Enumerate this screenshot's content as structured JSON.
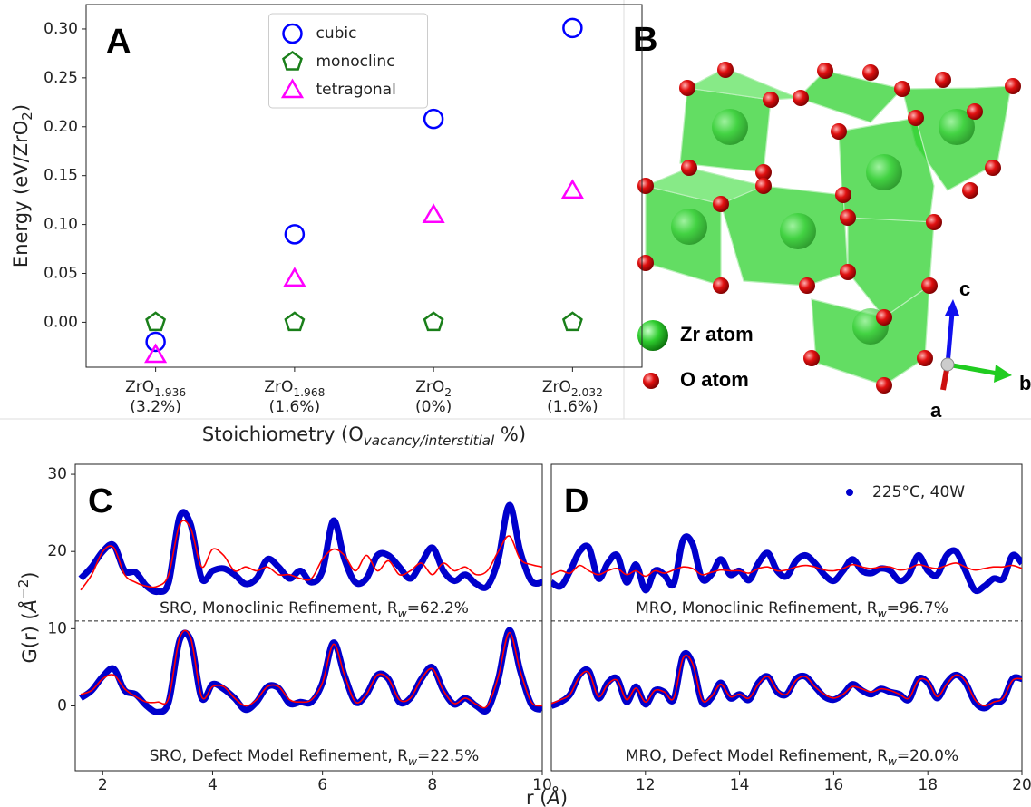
{
  "chart_data": [
    {
      "type": "scatter",
      "panel_label": "A",
      "y_label": {
        "text": "Energy (eV/ZrO",
        "sub": "2",
        "close": ")"
      },
      "x_label": {
        "text": "Stoichiometry (O",
        "sub": "vacancy/interstitial",
        "close": " %)"
      },
      "categories": [
        {
          "formula": "ZrO",
          "sub": "1.936",
          "note": "(3.2%)"
        },
        {
          "formula": "ZrO",
          "sub": "1.968",
          "note": "(1.6%)"
        },
        {
          "formula": "ZrO",
          "sub": "2",
          "note": "(0%)"
        },
        {
          "formula": "ZrO",
          "sub": "2.032",
          "note": "(1.6%)"
        }
      ],
      "series": [
        {
          "name": "cubic",
          "color": "#0000ff",
          "marker": "circle",
          "values": [
            -0.02,
            0.09,
            0.208,
            0.301
          ]
        },
        {
          "name": "monoclinc",
          "color": "#1a7f1a",
          "marker": "pentagon",
          "values": [
            0,
            0,
            0,
            0
          ]
        },
        {
          "name": "tetragonal",
          "color": "#ff00ff",
          "marker": "triangle",
          "values": [
            -0.033,
            0.045,
            0.11,
            0.135
          ]
        }
      ],
      "ylim": [
        -0.046,
        0.325
      ],
      "yticks": [
        {
          "value": 0,
          "label": "0.00"
        },
        0.05,
        {
          "value": 0.1,
          "label": "0.10"
        },
        0.15,
        {
          "value": 0.2,
          "label": "0.20"
        },
        0.25,
        {
          "value": 0.3,
          "label": "0.30"
        }
      ],
      "legend": "upper center"
    },
    {
      "type": "line",
      "panel_label": "C",
      "y_label": {
        "text": "G(r) (",
        "unit": "Å",
        "sup": "−2",
        "close": ")"
      },
      "x_label": {
        "text": "r (",
        "unit": "Å",
        "close": ")"
      },
      "x": [
        1.6,
        1.8,
        2,
        2.2,
        2.4,
        2.6,
        2.8,
        3,
        3.2,
        3.4,
        3.6,
        3.8,
        4,
        4.2,
        4.4,
        4.6,
        4.8,
        5,
        5.2,
        5.4,
        5.6,
        5.8,
        6,
        6.2,
        6.4,
        6.6,
        6.8,
        7,
        7.2,
        7.4,
        7.6,
        7.8,
        8,
        8.2,
        8.4,
        8.6,
        8.8,
        9,
        9.2,
        9.4,
        9.6,
        9.8,
        10
      ],
      "xlim": [
        1.5,
        10
      ],
      "xticks": [
        2,
        4,
        6,
        8,
        10
      ],
      "ylim": [
        -8.4,
        31.3
      ],
      "yticks": [
        0,
        10,
        20,
        30
      ],
      "separator_y": 11,
      "annotations": [
        {
          "text": "SRO, Monoclinic Refinement, R",
          "sub": "w",
          "close": "=62.2%"
        },
        {
          "text": "SRO, Defect Model Refinement, R",
          "sub": "w",
          "close": "=22.5%"
        }
      ],
      "series": [
        {
          "color": "#0000cc",
          "marker": "dot",
          "values": [
            16.5,
            18,
            20,
            20.8,
            17.5,
            17.3,
            15.5,
            14.8,
            16,
            24.5,
            23.5,
            16.5,
            17.5,
            17.8,
            17,
            15.8,
            16.5,
            19,
            18,
            16.5,
            17.5,
            16,
            17.5,
            24,
            19,
            16,
            16.5,
            19.5,
            19.5,
            18,
            16.5,
            18.5,
            20.5,
            17.5,
            16.2,
            17,
            15.8,
            15.5,
            19,
            26,
            20,
            16.2,
            16
          ]
        },
        {
          "color": "#ff0000",
          "marker": "line",
          "values": [
            15,
            17,
            20,
            20.5,
            17,
            16,
            15.5,
            15.5,
            17,
            23.5,
            23,
            18,
            20.3,
            19.5,
            17.5,
            18,
            17.5,
            18,
            17,
            17,
            16.5,
            16.5,
            19,
            20.3,
            19.5,
            17.5,
            19.5,
            17.5,
            18.8,
            17,
            17.5,
            18.5,
            17,
            18.5,
            17.5,
            18,
            17,
            17.5,
            20,
            22,
            19,
            18.3,
            18
          ]
        },
        {
          "color": "#0000cc",
          "marker": "dot",
          "values": [
            1,
            2,
            3.8,
            4.8,
            2,
            1.5,
            0,
            -0.8,
            0.5,
            8.5,
            8.5,
            1,
            2.8,
            2.2,
            1,
            -0.5,
            0.5,
            2.5,
            2.3,
            0.3,
            0.5,
            0.5,
            3,
            8.2,
            4,
            0.5,
            1.5,
            4,
            3.5,
            0.5,
            1,
            3.5,
            5,
            2,
            0.2,
            1,
            0,
            -0.5,
            3.5,
            9.8,
            4.5,
            0.2,
            -0.5
          ]
        },
        {
          "color": "#ff0000",
          "marker": "line",
          "values": [
            1.5,
            2,
            3.5,
            4,
            2.2,
            1.2,
            0.5,
            0.5,
            1,
            8.8,
            8.8,
            1.2,
            2.5,
            2.5,
            1,
            0,
            0.8,
            2.5,
            2.5,
            0.8,
            0.5,
            0.8,
            3,
            8,
            4,
            0.5,
            1.5,
            4,
            3.5,
            0.8,
            1,
            3.5,
            4.8,
            2,
            0.3,
            1,
            0.2,
            0,
            3.8,
            9.5,
            4.5,
            0.5,
            0
          ]
        }
      ]
    },
    {
      "type": "line",
      "panel_label": "D",
      "x": [
        10,
        10.2,
        10.4,
        10.6,
        10.8,
        11,
        11.2,
        11.4,
        11.6,
        11.8,
        12,
        12.2,
        12.4,
        12.6,
        12.8,
        13,
        13.2,
        13.4,
        13.6,
        13.8,
        14,
        14.2,
        14.4,
        14.6,
        14.8,
        15,
        15.2,
        15.4,
        15.6,
        15.8,
        16,
        16.2,
        16.4,
        16.6,
        16.8,
        17,
        17.2,
        17.4,
        17.6,
        17.8,
        18,
        18.2,
        18.4,
        18.6,
        18.8,
        19,
        19.2,
        19.4,
        19.6,
        19.8,
        20
      ],
      "xlim": [
        10,
        20
      ],
      "xticks": [
        12,
        14,
        16,
        18,
        20
      ],
      "ylim": [
        -8.4,
        31.3
      ],
      "separator_y": 11,
      "legend": "upper right",
      "annotations": [
        {
          "text": "MRO, Monoclinic Refinement, R",
          "sub": "w",
          "close": "=96.7%"
        },
        {
          "text": "MRO, Defect Model Refinement, R",
          "sub": "w",
          "close": "=20.0%"
        }
      ],
      "series": [
        {
          "name": "225°C, 40W",
          "color": "#0000cc",
          "marker": "dot",
          "values": [
            16,
            15.5,
            17.5,
            20,
            20.5,
            16.5,
            18.5,
            19.5,
            16,
            18.3,
            15,
            17.5,
            17,
            15.8,
            21.5,
            21,
            16.5,
            17,
            19,
            17,
            17.5,
            16.3,
            18.5,
            19.8,
            17.5,
            16.8,
            18.8,
            19.5,
            18.5,
            17,
            16.2,
            17.5,
            19,
            17.5,
            17.2,
            17.8,
            17.5,
            16.2,
            17,
            19.5,
            17.5,
            17,
            19.5,
            20,
            17.5,
            15,
            15.5,
            16.5,
            16.5,
            19.5,
            18.5
          ]
        },
        {
          "color": "#ff0000",
          "marker": "line",
          "values": [
            17,
            17.5,
            17.2,
            18.2,
            17.5,
            17,
            17.5,
            17.8,
            17,
            17.5,
            16.8,
            17.5,
            17.2,
            17.6,
            18,
            17.8,
            17,
            17.3,
            17.6,
            17.5,
            17.5,
            17.2,
            17.8,
            18,
            17.5,
            17.6,
            18,
            18.2,
            18,
            17.6,
            17.5,
            17.8,
            18.3,
            18,
            17.8,
            18,
            18,
            17.6,
            17.8,
            18.3,
            18,
            17.8,
            18.2,
            18.5,
            18,
            17.6,
            17.8,
            18,
            18,
            18.2,
            17.8
          ]
        },
        {
          "color": "#0000cc",
          "marker": "dot",
          "values": [
            0,
            0.5,
            1.5,
            4,
            4.5,
            1,
            3,
            3.5,
            0.5,
            2.5,
            0.2,
            2,
            1.8,
            0.8,
            6.5,
            5.5,
            0.5,
            1,
            3,
            1,
            1.5,
            0.8,
            3,
            3.8,
            1.8,
            1.5,
            3.5,
            3.8,
            2.5,
            1.2,
            0.8,
            1.5,
            2.8,
            2,
            1.5,
            2.2,
            1.8,
            1.5,
            0.8,
            3.5,
            3,
            1,
            3,
            4,
            3,
            0.5,
            -0.3,
            0.5,
            0.8,
            3.5,
            3.5
          ]
        },
        {
          "color": "#ff0000",
          "marker": "line",
          "values": [
            0.3,
            0.8,
            1.5,
            3.8,
            4.3,
            1.2,
            2.8,
            3.3,
            0.8,
            2.3,
            0.5,
            2,
            1.8,
            1,
            6.2,
            5.5,
            0.8,
            1.2,
            2.8,
            1.2,
            1.5,
            1,
            2.8,
            3.8,
            2,
            1.5,
            3.3,
            3.8,
            2.5,
            1.5,
            1,
            1.5,
            2.5,
            2.2,
            1.8,
            2.2,
            2,
            1.5,
            1,
            3.3,
            3.2,
            1.2,
            2.8,
            4,
            3.2,
            0.8,
            0,
            0.5,
            1,
            3.3,
            3.5
          ]
        }
      ]
    }
  ],
  "structure_panel": {
    "panel_label": "B",
    "legend": [
      "Zr atom",
      "O atom"
    ],
    "axes": {
      "a": "a",
      "b": "b",
      "c": "c"
    }
  }
}
